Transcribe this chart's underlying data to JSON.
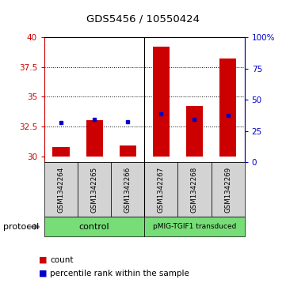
{
  "title": "GDS5456 / 10550424",
  "samples": [
    "GSM1342264",
    "GSM1342265",
    "GSM1342266",
    "GSM1342267",
    "GSM1342268",
    "GSM1342269"
  ],
  "bar_bottoms": [
    30,
    30,
    30,
    30,
    30,
    30
  ],
  "bar_tops": [
    30.8,
    33.0,
    30.9,
    39.2,
    34.2,
    38.2
  ],
  "percentile_values": [
    32.8,
    33.1,
    32.9,
    33.55,
    33.1,
    33.45
  ],
  "ylim_left": [
    29.5,
    40
  ],
  "ylim_right": [
    0,
    100
  ],
  "yticks_left": [
    30,
    32.5,
    35,
    37.5,
    40
  ],
  "yticks_right": [
    0,
    25,
    50,
    75,
    100
  ],
  "ytick_labels_right": [
    "0",
    "25",
    "50",
    "75",
    "100%"
  ],
  "bar_color": "#CC0000",
  "percentile_color": "#0000CC",
  "bg_color": "#D3D3D3",
  "green_color": "#77DD77",
  "left_axis_color": "#CC0000",
  "right_axis_color": "#0000CC",
  "bar_width": 0.5,
  "n_samples": 6,
  "control_label": "control",
  "pmig_label": "pMIG-TGIF1 transduced",
  "protocol_label": "protocol",
  "legend_count": "count",
  "legend_percentile": "percentile rank within the sample",
  "grid_lines": [
    32.5,
    35,
    37.5
  ]
}
